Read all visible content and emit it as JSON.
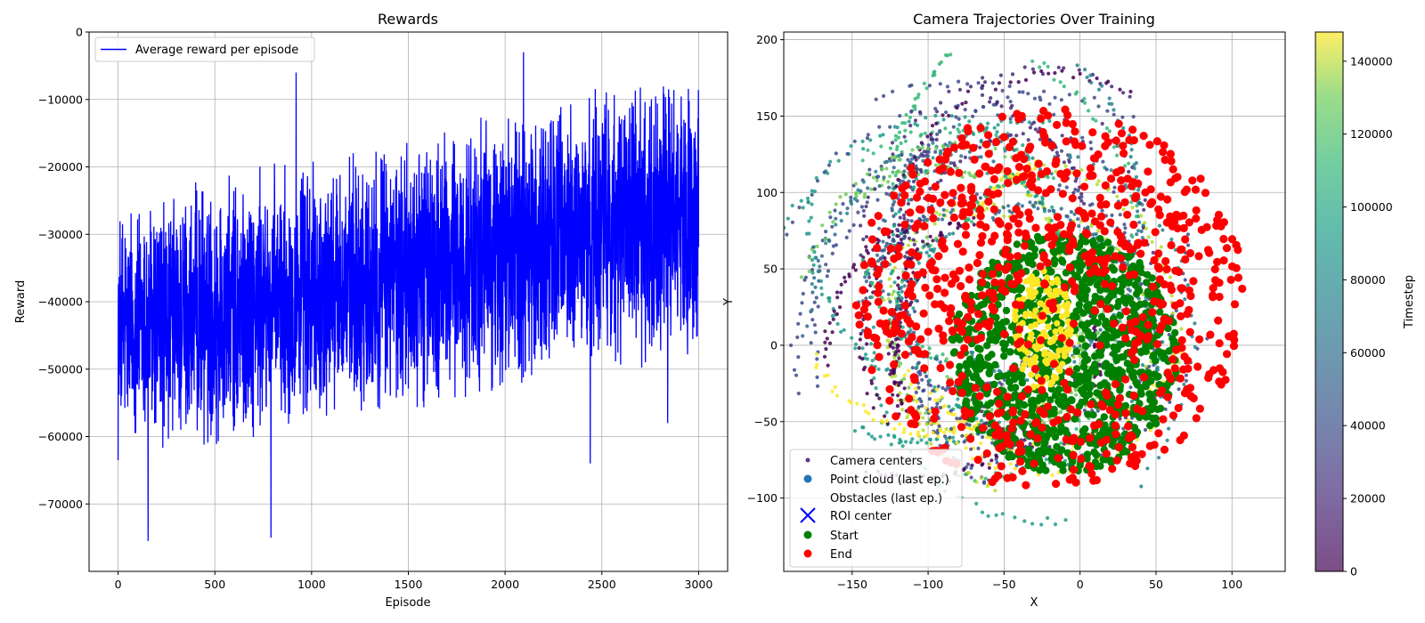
{
  "chart_data": [
    {
      "type": "line",
      "title": "Rewards",
      "xlabel": "Episode",
      "ylabel": "Reward",
      "xlim": [
        -150,
        3150
      ],
      "ylim": [
        -80000,
        0
      ],
      "xticks": [
        0,
        500,
        1000,
        1500,
        2000,
        2500,
        3000
      ],
      "yticks": [
        0,
        -10000,
        -20000,
        -30000,
        -40000,
        -50000,
        -60000,
        -70000
      ],
      "xtick_labels": [
        "0",
        "500",
        "1000",
        "1500",
        "2000",
        "2500",
        "3000"
      ],
      "ytick_labels": [
        "0",
        "−10000",
        "−20000",
        "−30000",
        "−40000",
        "−50000",
        "−60000",
        "−70000"
      ],
      "grid": true,
      "legend": "top-left",
      "series": [
        {
          "name": "Average reward per episode",
          "color": "#0000ff",
          "episodes": 3000,
          "trend_mean": [
            [
              0,
              -44000
            ],
            [
              500,
              -42000
            ],
            [
              1000,
              -39000
            ],
            [
              1500,
              -36000
            ],
            [
              2000,
              -33000
            ],
            [
              2500,
              -29000
            ],
            [
              3000,
              -27000
            ]
          ],
          "notable_values": [
            {
              "x": 155,
              "y": -75500
            },
            {
              "x": 790,
              "y": -75000
            },
            {
              "x": 920,
              "y": -6000
            },
            {
              "x": 2095,
              "y": -3000
            },
            {
              "x": 2440,
              "y": -64000
            },
            {
              "x": 2840,
              "y": -58000
            }
          ]
        }
      ]
    },
    {
      "type": "scatter",
      "title": "Camera Trajectories Over Training",
      "xlabel": "X",
      "ylabel": "Y",
      "xlim": [
        -195,
        135
      ],
      "ylim": [
        -148,
        205
      ],
      "xticks": [
        -150,
        -100,
        -50,
        0,
        50,
        100
      ],
      "yticks": [
        -100,
        -50,
        0,
        50,
        100,
        150,
        200
      ],
      "xtick_labels": [
        "−150",
        "−100",
        "−50",
        "0",
        "50",
        "100"
      ],
      "ytick_labels": [
        "−100",
        "−50",
        "0",
        "50",
        "100",
        "150",
        "200"
      ],
      "grid": true,
      "legend": "bottom-left",
      "colorbar": {
        "label": "Timestep",
        "range": [
          0,
          148000
        ],
        "ticks": [
          0,
          20000,
          40000,
          60000,
          80000,
          100000,
          120000,
          140000
        ],
        "tick_labels": [
          "0",
          "20000",
          "40000",
          "60000",
          "80000",
          "100000",
          "120000",
          "140000"
        ],
        "colormap": "viridis"
      },
      "roi_center": [
        0,
        0
      ],
      "start_region": {
        "center": [
          -10,
          -5
        ],
        "radius": 75
      },
      "end_region": {
        "center": [
          -20,
          30
        ],
        "radius_x": 135,
        "radius_y": 125
      },
      "trajectory_extent": {
        "x": [
          -180,
          115
        ],
        "y": [
          -135,
          190
        ]
      },
      "series": [
        {
          "name": "Camera centers",
          "color": "#5b3a8c",
          "marker": "small-dot"
        },
        {
          "name": "Point cloud (last ep.)",
          "color": "#1f77b4",
          "marker": "dot"
        },
        {
          "name": "Obstacles (last ep.)",
          "color": "#ffffff",
          "marker": "none"
        },
        {
          "name": "ROI center",
          "color": "#0000ff",
          "marker": "x"
        },
        {
          "name": "Start",
          "color": "#008000",
          "marker": "dot"
        },
        {
          "name": "End",
          "color": "#ff0000",
          "marker": "dot"
        }
      ]
    }
  ]
}
